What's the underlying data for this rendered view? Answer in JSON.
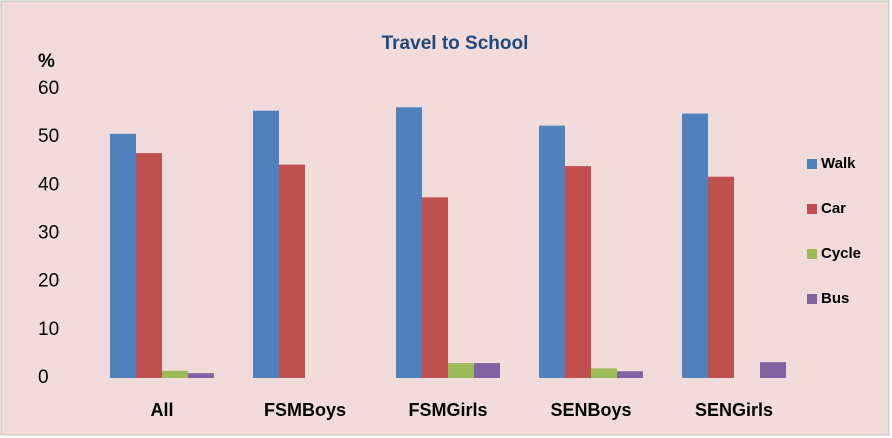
{
  "chart_data": {
    "type": "bar",
    "title": "Travel to School",
    "y_label": "%",
    "categories": [
      "All",
      "FSMBoys",
      "FSMGirls",
      "SENBoys",
      "SENGirls"
    ],
    "series": [
      {
        "name": "Walk",
        "color": "#4f81bd",
        "values": [
          50.7,
          55.5,
          56.2,
          52.4,
          54.9
        ]
      },
      {
        "name": "Car",
        "color": "#c0504d",
        "values": [
          46.7,
          44.3,
          37.5,
          44.0,
          41.8
        ]
      },
      {
        "name": "Cycle",
        "color": "#9bbb59",
        "values": [
          1.5,
          0,
          3.1,
          2.0,
          0
        ]
      },
      {
        "name": "Bus",
        "color": "#8064a2",
        "values": [
          1.0,
          0,
          3.1,
          1.4,
          3.3
        ]
      }
    ],
    "ylim": [
      0,
      60
    ],
    "yticks": [
      0,
      10,
      20,
      30,
      40,
      50,
      60
    ],
    "grid": false,
    "legend": "right"
  }
}
